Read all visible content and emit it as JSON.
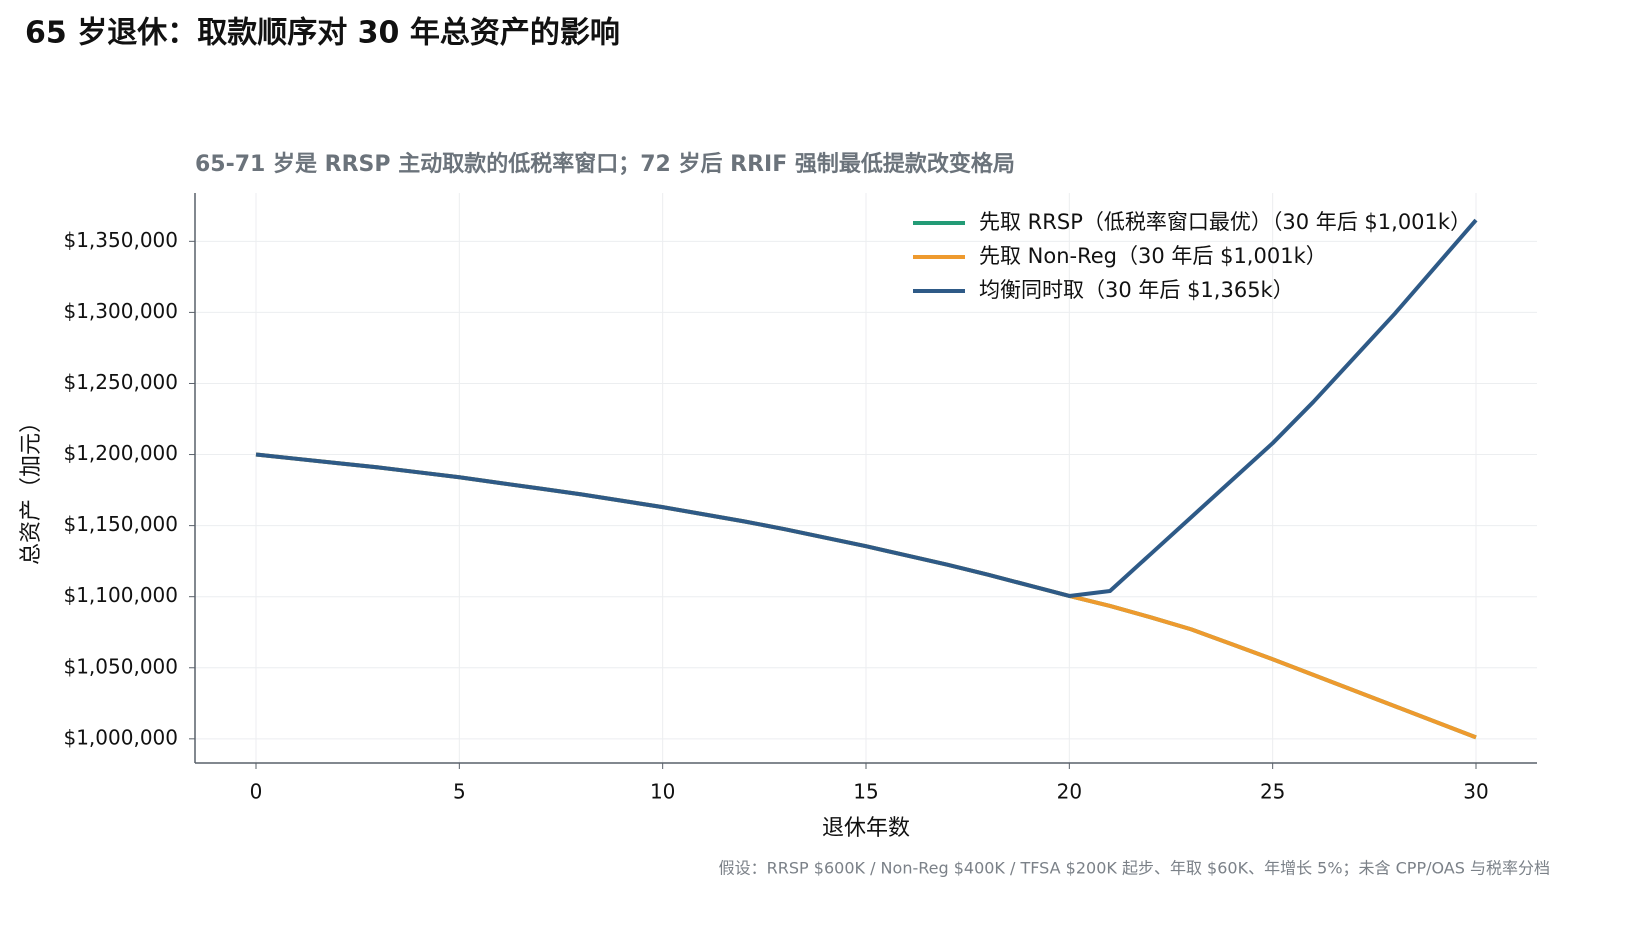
{
  "title": "65 岁退休：取款顺序对 30 年总资产的影响",
  "chart_data": {
    "type": "line",
    "title": "65-71 岁是 RRSP 主动取款的低税率窗口；72 岁后 RRIF 强制最低提款改变格局",
    "x_label": "退休年数",
    "y_label": "总资产（加元）",
    "x": [
      0,
      1,
      2,
      3,
      4,
      5,
      6,
      7,
      8,
      9,
      10,
      11,
      12,
      13,
      14,
      15,
      16,
      17,
      18,
      19,
      20,
      21,
      22,
      23,
      24,
      25,
      26,
      27,
      28,
      29,
      30
    ],
    "series": [
      {
        "name": "先取 RRSP（低税率窗口最优）（30 年后 $1,001k）",
        "color": "#239b76",
        "values": [
          1200000,
          1197000,
          1194000,
          1191000,
          1187500,
          1184000,
          1180000,
          1176000,
          1172000,
          1167500,
          1163000,
          1158000,
          1153000,
          1147500,
          1141500,
          1135500,
          1129000,
          1122500,
          1115500,
          1108000,
          1100500,
          1093500,
          1085500,
          1077000,
          1066500,
          1056000,
          1045000,
          1034000,
          1023000,
          1012000,
          1001000
        ]
      },
      {
        "name": "先取 Non-Reg（30 年后 $1,001k）",
        "color": "#ee9a2e",
        "values": [
          1200000,
          1197000,
          1194000,
          1191000,
          1187500,
          1184000,
          1180000,
          1176000,
          1172000,
          1167500,
          1163000,
          1158000,
          1153000,
          1147500,
          1141500,
          1135500,
          1129000,
          1122500,
          1115500,
          1108000,
          1100500,
          1093500,
          1085500,
          1077000,
          1066500,
          1056000,
          1045000,
          1034000,
          1023000,
          1012000,
          1001000
        ]
      },
      {
        "name": "均衡同时取（30 年后 $1,365k）",
        "color": "#2e5a87",
        "values": [
          1200000,
          1197000,
          1194000,
          1191000,
          1187500,
          1184000,
          1180000,
          1176000,
          1172000,
          1167500,
          1163000,
          1158000,
          1153000,
          1147500,
          1141500,
          1135500,
          1129000,
          1122500,
          1115500,
          1108000,
          1100500,
          1104000,
          1130000,
          1156000,
          1182000,
          1208000,
          1237000,
          1268000,
          1299000,
          1332000,
          1365000
        ]
      }
    ],
    "xlim": [
      -1.5,
      31.5
    ],
    "xticks": [
      0,
      5,
      10,
      15,
      20,
      25,
      30
    ],
    "ylim": [
      983000,
      1384000
    ],
    "yticks": [
      {
        "value": 1000000,
        "label": "$1,000,000"
      },
      {
        "value": 1050000,
        "label": "$1,050,000"
      },
      {
        "value": 1100000,
        "label": "$1,100,000"
      },
      {
        "value": 1150000,
        "label": "$1,150,000"
      },
      {
        "value": 1200000,
        "label": "$1,200,000"
      },
      {
        "value": 1250000,
        "label": "$1,250,000"
      },
      {
        "value": 1300000,
        "label": "$1,300,000"
      },
      {
        "value": 1350000,
        "label": "$1,350,000"
      }
    ],
    "grid": true,
    "legend": "upper right",
    "note": "假设：RRSP $600K / Non-Reg $400K / TFSA $200K 起步、年取 $60K、年增长 5%；未含 CPP/OAS 与税率分档"
  }
}
